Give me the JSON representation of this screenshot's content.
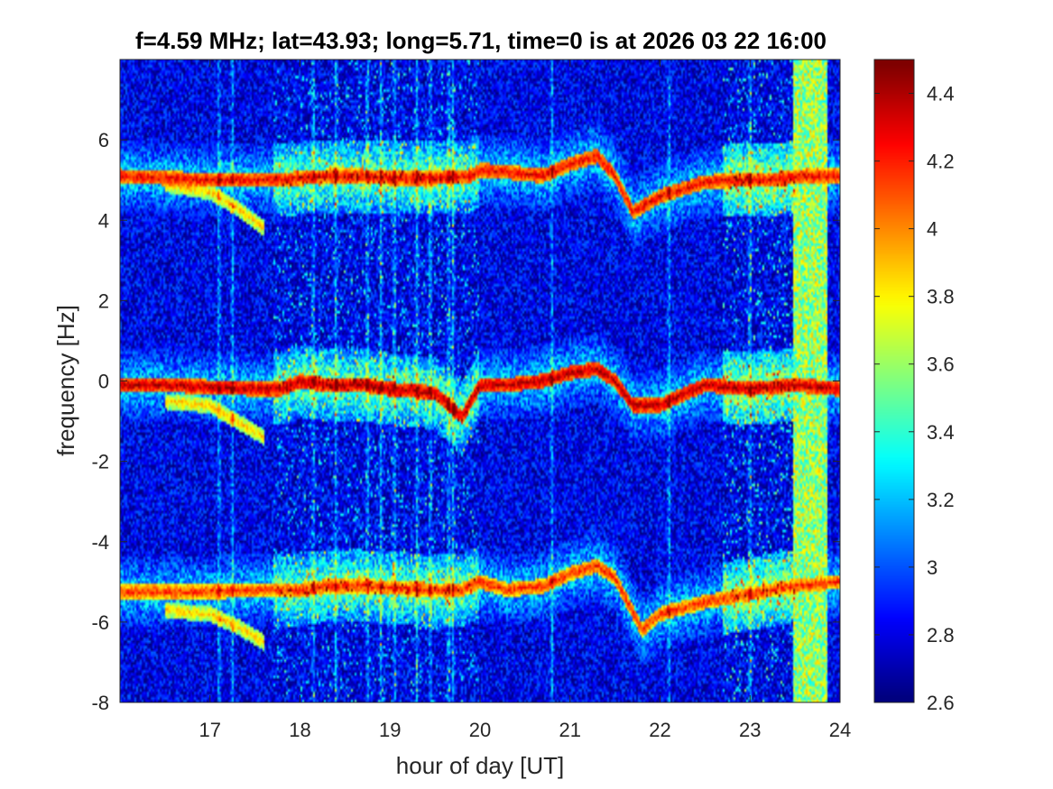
{
  "chart_data": {
    "type": "heatmap",
    "title": "f=4.59 MHz;  lat=43.93; long=5.71, time=0 is at 2026 03 22 16:00",
    "xlabel": "hour of day [UT]",
    "ylabel": "frequency [Hz]",
    "xlim": [
      16,
      24
    ],
    "ylim": [
      -8,
      8
    ],
    "xticks": [
      17,
      18,
      19,
      20,
      21,
      22,
      23,
      24
    ],
    "yticks": [
      -8,
      -6,
      -4,
      -2,
      0,
      2,
      4,
      6
    ],
    "colorbar": {
      "limits": [
        2.6,
        4.5
      ],
      "ticks": [
        2.6,
        2.8,
        3,
        3.2,
        3.4,
        3.6,
        3.8,
        4,
        4.2,
        4.4
      ],
      "colormap": "jet"
    },
    "background_level": 2.8,
    "traces": [
      {
        "x": [
          16.0,
          16.5,
          17.0,
          17.5,
          17.8,
          18.0,
          18.3,
          18.7,
          19.0,
          19.5,
          19.9,
          20.0,
          20.3,
          20.7,
          21.0,
          21.3,
          21.5,
          21.7,
          22.0,
          22.5,
          22.9,
          23.2,
          23.6,
          24.0
        ],
        "y": [
          5.1,
          5.05,
          5.0,
          5.0,
          5.0,
          5.05,
          5.1,
          5.1,
          5.05,
          5.05,
          5.1,
          5.25,
          5.2,
          5.1,
          5.4,
          5.6,
          5.1,
          4.2,
          4.6,
          4.95,
          5.0,
          5.0,
          5.1,
          5.1
        ],
        "level": 4.3
      },
      {
        "x": [
          16.0,
          16.5,
          17.0,
          17.5,
          17.8,
          18.0,
          18.3,
          18.7,
          19.0,
          19.5,
          19.8,
          20.0,
          20.3,
          20.7,
          21.0,
          21.3,
          21.5,
          21.7,
          22.0,
          22.5,
          23.0,
          23.5,
          24.0
        ],
        "y": [
          -0.1,
          -0.1,
          -0.15,
          -0.2,
          -0.2,
          0.0,
          -0.1,
          -0.1,
          -0.2,
          -0.3,
          -0.9,
          -0.1,
          -0.1,
          0.0,
          0.2,
          0.3,
          0.0,
          -0.6,
          -0.6,
          -0.1,
          -0.2,
          -0.1,
          -0.2
        ],
        "level": 4.4
      },
      {
        "x": [
          16.0,
          16.5,
          17.0,
          17.5,
          18.0,
          18.3,
          18.7,
          19.0,
          19.5,
          19.8,
          20.0,
          20.3,
          20.7,
          21.0,
          21.3,
          21.5,
          21.8,
          22.0,
          22.5,
          23.0,
          23.5,
          24.0
        ],
        "y": [
          -5.25,
          -5.25,
          -5.25,
          -5.2,
          -5.2,
          -5.1,
          -5.1,
          -5.15,
          -5.2,
          -5.2,
          -5.0,
          -5.2,
          -5.1,
          -4.8,
          -4.6,
          -4.9,
          -6.2,
          -5.8,
          -5.5,
          -5.3,
          -5.1,
          -5.0
        ],
        "level": 4.2
      }
    ],
    "side_traces": [
      {
        "x": [
          16.5,
          17.0,
          17.3,
          17.6
        ],
        "y": [
          4.9,
          4.7,
          4.3,
          3.8
        ],
        "level": 3.9
      },
      {
        "x": [
          16.5,
          17.0,
          17.3,
          17.6
        ],
        "y": [
          -0.5,
          -0.6,
          -1.0,
          -1.4
        ],
        "level": 3.9
      },
      {
        "x": [
          16.5,
          17.0,
          17.3,
          17.6
        ],
        "y": [
          -5.7,
          -5.8,
          -6.1,
          -6.5
        ],
        "level": 3.9
      }
    ],
    "bright_band": {
      "x_range": [
        23.48,
        23.85
      ],
      "level": 3.6
    },
    "streaks_x": [
      17.1,
      17.25,
      18.15,
      18.4,
      18.75,
      18.9,
      19.05,
      19.3,
      19.45,
      19.65,
      19.7,
      20.8,
      22.1,
      23.0
    ]
  }
}
